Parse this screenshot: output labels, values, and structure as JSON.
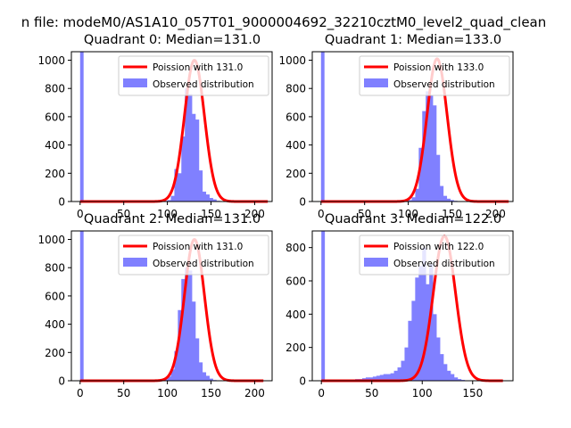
{
  "figure": {
    "suptitle": "n file: modeM0/AS1A10_057T01_9000004692_32210cztM0_level2_quad_clean"
  },
  "colors": {
    "fit_line": "#ff0000",
    "histogram": "#8080ff",
    "axes": "#000000",
    "background": "#ffffff"
  },
  "chart_data": [
    {
      "type": "bar",
      "title": "Quadrant 0: Median=131.0",
      "xlim": [
        -10,
        220
      ],
      "ylim": [
        0,
        1060
      ],
      "xticks": [
        0,
        50,
        100,
        150,
        200
      ],
      "yticks": [
        0,
        200,
        400,
        600,
        800,
        1000
      ],
      "zero_bin": {
        "x0": 0,
        "x1": 4,
        "value": 1060
      },
      "hist": {
        "x0": 96,
        "bin_width": 4,
        "values": [
          5,
          10,
          40,
          230,
          200,
          460,
          800,
          760,
          620,
          580,
          220,
          70,
          50,
          25,
          15,
          5
        ]
      },
      "fit": {
        "mean": 131.0,
        "peak": 1000,
        "x_range": [
          0,
          215
        ]
      },
      "legend": {
        "fit_label": "Poission with 131.0",
        "hist_label": "Observed distribution",
        "loc": "upper right"
      }
    },
    {
      "type": "bar",
      "title": "Quadrant 1: Median=133.0",
      "xlim": [
        -10,
        220
      ],
      "ylim": [
        0,
        1060
      ],
      "xticks": [
        0,
        50,
        100,
        150,
        200
      ],
      "yticks": [
        0,
        200,
        400,
        600,
        800,
        1000
      ],
      "zero_bin": {
        "x0": 0,
        "x1": 4,
        "value": 1060
      },
      "hist": {
        "x0": 100,
        "bin_width": 4,
        "values": [
          10,
          30,
          90,
          380,
          640,
          780,
          750,
          680,
          330,
          110,
          40,
          20,
          10,
          5
        ]
      },
      "fit": {
        "mean": 133.0,
        "peak": 1010,
        "x_range": [
          0,
          215
        ]
      },
      "legend": {
        "fit_label": "Poission with 133.0",
        "hist_label": "Observed distribution",
        "loc": "upper right"
      }
    },
    {
      "type": "bar",
      "title": "Quadrant 2: Median=131.0",
      "xlim": [
        -10,
        220
      ],
      "ylim": [
        0,
        1060
      ],
      "xticks": [
        0,
        50,
        100,
        150,
        200
      ],
      "yticks": [
        0,
        200,
        400,
        600,
        800,
        1000
      ],
      "zero_bin": {
        "x0": 0,
        "x1": 4,
        "value": 1060
      },
      "hist": {
        "x0": 92,
        "bin_width": 4,
        "values": [
          5,
          10,
          30,
          80,
          210,
          500,
          720,
          800,
          780,
          560,
          300,
          130,
          60,
          35,
          15,
          5
        ]
      },
      "fit": {
        "mean": 131.0,
        "peak": 1000,
        "x_range": [
          0,
          210
        ]
      },
      "legend": {
        "fit_label": "Poission with 131.0",
        "hist_label": "Observed distribution",
        "loc": "upper right"
      }
    },
    {
      "type": "bar",
      "title": "Quadrant 3: Median=122.0",
      "xlim": [
        -9,
        190
      ],
      "ylim": [
        0,
        900
      ],
      "xticks": [
        0,
        50,
        100,
        150
      ],
      "yticks": [
        0,
        200,
        400,
        600,
        800
      ],
      "zero_bin": {
        "x0": 0,
        "x1": 3.5,
        "value": 900
      },
      "hist": {
        "x0": 30,
        "bin_width": 3.5,
        "values": [
          5,
          10,
          10,
          15,
          20,
          20,
          25,
          30,
          35,
          40,
          40,
          45,
          60,
          80,
          120,
          200,
          360,
          480,
          620,
          690,
          800,
          580,
          700,
          400,
          260,
          160,
          100,
          60,
          40,
          20,
          10,
          5
        ]
      },
      "fit": {
        "mean": 122.0,
        "peak": 870,
        "x_range": [
          0,
          180
        ]
      },
      "legend": {
        "fit_label": "Poission with 122.0",
        "hist_label": "Observed distribution",
        "loc": "upper right"
      }
    }
  ]
}
